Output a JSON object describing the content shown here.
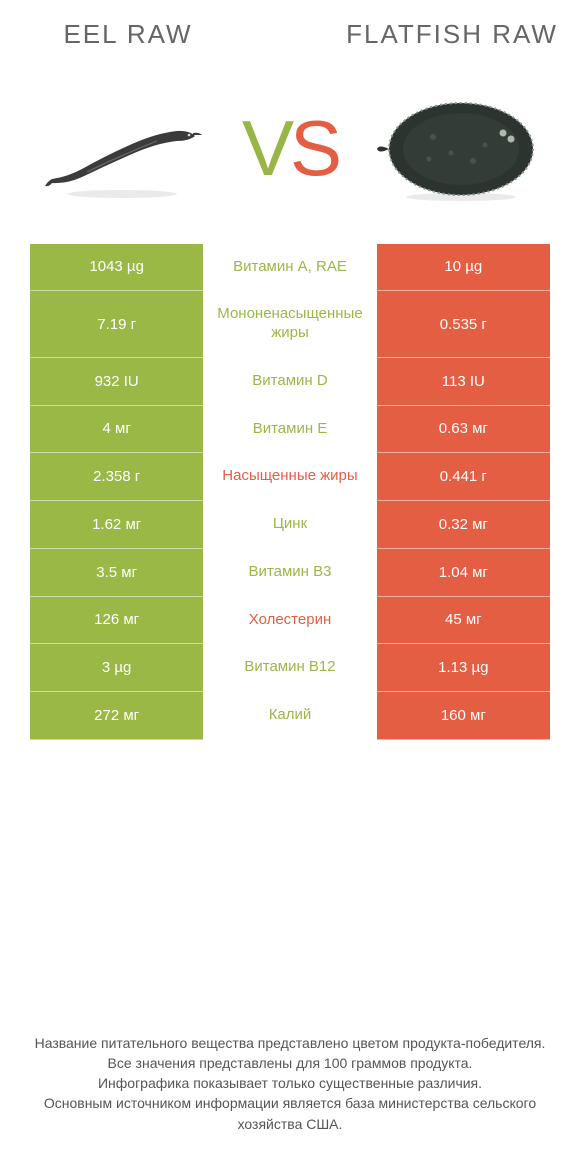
{
  "colors": {
    "left": "#9ab846",
    "right": "#e35e43",
    "good_label": "#9ab846",
    "bad_label": "#e35e43",
    "title_text": "#666666",
    "footer_text": "#555555"
  },
  "header": {
    "left_title": "Eel raw",
    "right_title": "Flatfish raw"
  },
  "vs": {
    "v": "V",
    "s": "S"
  },
  "rows": [
    {
      "left": "1043 µg",
      "label": "Витамин A, RAE",
      "right": "10 µg",
      "label_side": "good"
    },
    {
      "left": "7.19 г",
      "label": "Мононенасыщенные жиры",
      "right": "0.535 г",
      "label_side": "good"
    },
    {
      "left": "932 IU",
      "label": "Витамин D",
      "right": "113 IU",
      "label_side": "good"
    },
    {
      "left": "4 мг",
      "label": "Витамин E",
      "right": "0.63 мг",
      "label_side": "good"
    },
    {
      "left": "2.358 г",
      "label": "Насыщенные жиры",
      "right": "0.441 г",
      "label_side": "bad"
    },
    {
      "left": "1.62 мг",
      "label": "Цинк",
      "right": "0.32 мг",
      "label_side": "good"
    },
    {
      "left": "3.5 мг",
      "label": "Витамин B3",
      "right": "1.04 мг",
      "label_side": "good"
    },
    {
      "left": "126 мг",
      "label": "Холестерин",
      "right": "45 мг",
      "label_side": "bad"
    },
    {
      "left": "3 µg",
      "label": "Витамин B12",
      "right": "1.13 µg",
      "label_side": "good"
    },
    {
      "left": "272 мг",
      "label": "Калий",
      "right": "160 мг",
      "label_side": "good"
    }
  ],
  "footer": {
    "line1": "Название питательного вещества представлено цветом продукта-победителя.",
    "line2": "Все значения представлены для 100 граммов продукта.",
    "line3": "Инфографика показывает только существенные различия.",
    "line4": "Основным источником информации является база министерства сельского хозяйства США."
  }
}
